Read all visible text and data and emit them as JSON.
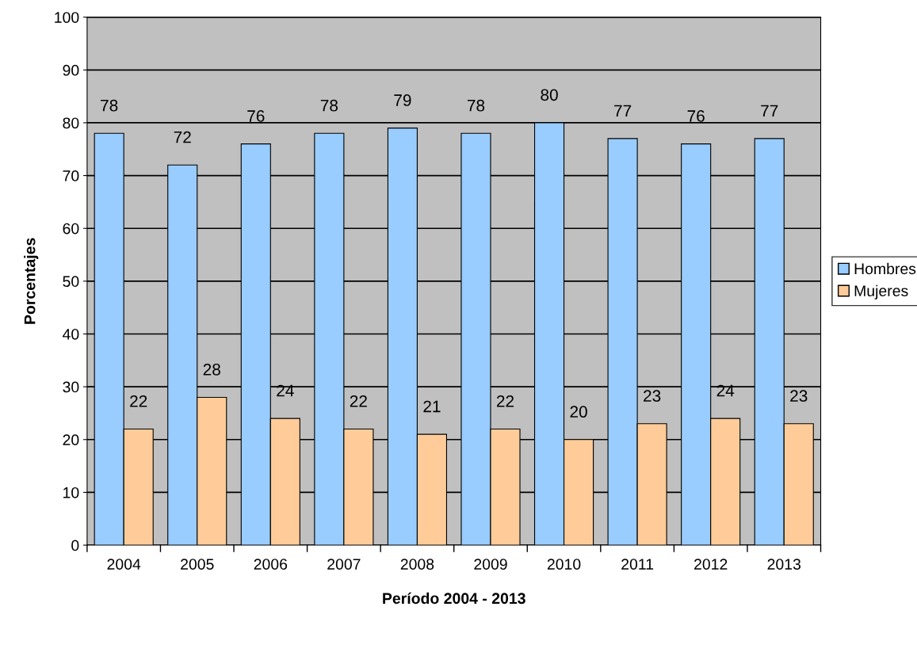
{
  "chart_data": {
    "type": "bar",
    "xlabel": "Período 2004 - 2013",
    "ylabel": "Porcentajes",
    "categories": [
      "2004",
      "2005",
      "2006",
      "2007",
      "2008",
      "2009",
      "2010",
      "2011",
      "2012",
      "2013"
    ],
    "series": [
      {
        "name": "Hombres",
        "color": "#99ccff",
        "values": [
          78,
          72,
          76,
          78,
          79,
          78,
          80,
          77,
          76,
          77
        ]
      },
      {
        "name": "Mujeres",
        "color": "#ffcc99",
        "values": [
          22,
          28,
          24,
          22,
          21,
          22,
          20,
          23,
          24,
          23
        ]
      }
    ],
    "ylim": [
      0,
      100
    ],
    "yticks": [
      0,
      10,
      20,
      30,
      40,
      50,
      60,
      70,
      80,
      90,
      100
    ],
    "grid": "y",
    "legend": "right",
    "data_labels": true
  }
}
